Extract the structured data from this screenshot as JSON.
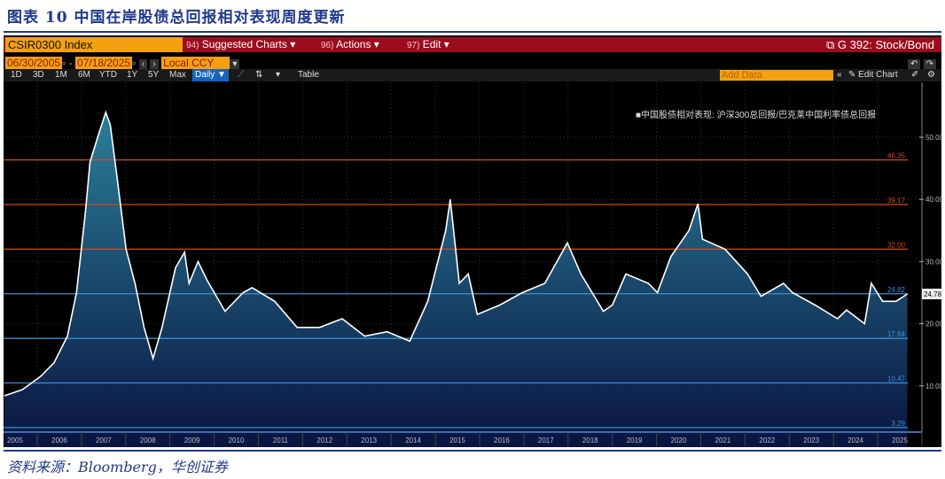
{
  "title": "图表 10 中国在岸股债总回报相对表现周度更新",
  "source": "资料来源：Bloomberg，华创证券",
  "toolbar": {
    "ticker": "CSIR0300 Index",
    "menus": [
      {
        "num": "94)",
        "label": "Suggested Charts ▾"
      },
      {
        "num": "96)",
        "label": "Actions ▾"
      },
      {
        "num": "97)",
        "label": "Edit ▾"
      }
    ],
    "chart_name": "G 392: Stock/Bond",
    "start_date": "06/30/2005",
    "end_date": "07/18/2025",
    "currency": "Local CCY",
    "periods": [
      "1D",
      "3D",
      "1M",
      "6M",
      "YTD",
      "1Y",
      "5Y",
      "Max"
    ],
    "frequency": "Daily ▼",
    "table": "Table",
    "add_data": "Add Data",
    "edit_chart": "Edit Chart"
  },
  "chart_data": {
    "type": "area",
    "legend": "中国股债相对表现: 沪深300总回报/巴克莱中国利率债总回报",
    "legend_position": "top-right",
    "x_ticks": [
      "2005",
      "2006",
      "2007",
      "2008",
      "2009",
      "2010",
      "2011",
      "2012",
      "2013",
      "2014",
      "2015",
      "2016",
      "2017",
      "2018",
      "2019",
      "2020",
      "2021",
      "2022",
      "2023",
      "2024",
      "2025"
    ],
    "y_ticks": [
      10,
      20,
      30,
      40,
      50
    ],
    "y_tick_labels": [
      "10.00",
      "20.00",
      "30.00",
      "40.00",
      "50.00"
    ],
    "ylim": [
      0,
      56
    ],
    "last_value": "24.78",
    "last_value_num": 24.78,
    "ref_lines": [
      {
        "value": 46.35,
        "label": "46.35",
        "color": "#d2491c"
      },
      {
        "value": 39.17,
        "label": "39.17",
        "color": "#d2491c"
      },
      {
        "value": 32.0,
        "label": "32.00",
        "color": "#d2491c"
      },
      {
        "value": 24.82,
        "label": "24.82",
        "color": "#3a8fd6"
      },
      {
        "value": 17.64,
        "label": "17.64",
        "color": "#3a8fd6"
      },
      {
        "value": 10.47,
        "label": "10.47",
        "color": "#3a8fd6"
      },
      {
        "value": 3.29,
        "label": "3.29",
        "color": "#3a8fd6"
      }
    ],
    "x": [
      2005.5,
      2005.9,
      2006.3,
      2006.6,
      2006.9,
      2007.1,
      2007.3,
      2007.4,
      2007.6,
      2007.75,
      2007.85,
      2008.0,
      2008.2,
      2008.4,
      2008.6,
      2008.8,
      2009.0,
      2009.3,
      2009.5,
      2009.6,
      2009.8,
      2010.0,
      2010.4,
      2010.8,
      2011.0,
      2011.5,
      2012.0,
      2012.5,
      2013.0,
      2013.5,
      2014.0,
      2014.5,
      2014.9,
      2015.3,
      2015.4,
      2015.6,
      2015.8,
      2016.0,
      2016.5,
      2017.0,
      2017.5,
      2018.0,
      2018.3,
      2018.8,
      2019.0,
      2019.3,
      2019.8,
      2020.0,
      2020.3,
      2020.7,
      2020.9,
      2021.0,
      2021.5,
      2022.0,
      2022.3,
      2022.8,
      2023.0,
      2023.5,
      2024.0,
      2024.2,
      2024.6,
      2024.75,
      2025.0,
      2025.3,
      2025.55
    ],
    "y": [
      8.4,
      9.4,
      11.5,
      13.7,
      18,
      25,
      38,
      46,
      50.7,
      54,
      52,
      43.6,
      32,
      26.5,
      19.4,
      14.4,
      19.4,
      29,
      31.5,
      26.5,
      30,
      27,
      22,
      25,
      25.8,
      23.6,
      19.4,
      19.4,
      20.8,
      18,
      18.7,
      17.2,
      23.6,
      35,
      40,
      26.5,
      28,
      21.5,
      23,
      25,
      26.5,
      33,
      28,
      22,
      23,
      28,
      26.5,
      25,
      30.8,
      35,
      39.3,
      33.6,
      32,
      28,
      24.4,
      26.5,
      25,
      23,
      20.8,
      22.2,
      20,
      26.5,
      23.6,
      23.6,
      24.78
    ]
  }
}
